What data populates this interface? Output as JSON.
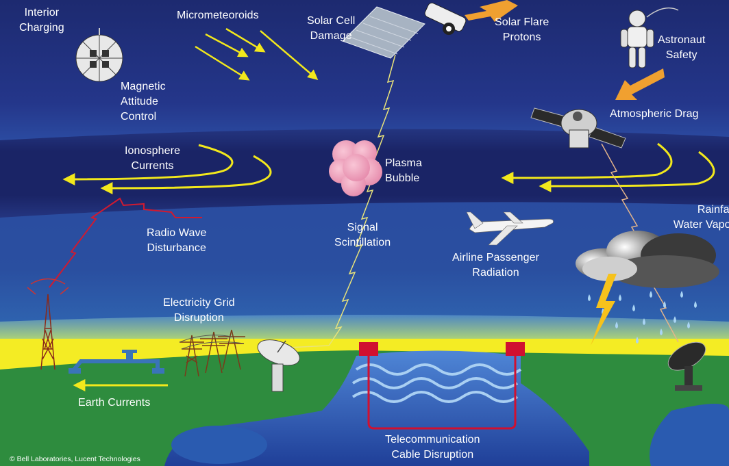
{
  "labels": {
    "interior_charging": "Interior\nCharging",
    "micrometeoroids": "Micrometeoroids",
    "solar_cell_damage": "Solar Cell\nDamage",
    "solar_flare_protons": "Solar Flare\nProtons",
    "astronaut_safety": "Astronaut\nSafety",
    "magnetic_attitude_control": "Magnetic\nAttitude\nControl",
    "atmospheric_drag": "Atmospheric Drag",
    "ionosphere_currents": "Ionosphere\nCurrents",
    "plasma_bubble": "Plasma\nBubble",
    "rainfall_water_vapor": "Rainfall\nWater Vapor",
    "radio_wave_disturbance": "Radio Wave\nDisturbance",
    "signal_scintillation": "Signal\nScintillation",
    "airline_passenger_radiation": "Airline Passenger\nRadiation",
    "electricity_grid_disruption": "Electricity Grid\nDisruption",
    "earth_currents": "Earth Currents",
    "telecommunication_cable_disruption": "Telecommunication\nCable Disruption"
  },
  "credit": "© Bell Laboratories, Lucent Technologies",
  "colors": {
    "space": "#1f2f78",
    "ionosphere_band": "#1a2360",
    "lower_sky": "#2a59a8",
    "horizon_yellow": "#f4ec2a",
    "ground": "#2d8a3e",
    "water": "#2a5bb0",
    "arrow_yellow": "#f2e81c",
    "arrow_orange": "#f0a030",
    "cable_red": "#d01030",
    "radio_red": "#d01a30"
  },
  "icons": [
    "satellite-sphere-icon",
    "space-station-icon",
    "astronaut-icon",
    "satellite-icon",
    "plasma-cloud-icon",
    "airplane-icon",
    "storm-cloud-icon",
    "lightning-icon",
    "radio-tower-icon",
    "power-pylon-icon",
    "pipeline-icon",
    "satellite-dish-icon",
    "cable-station-icon"
  ]
}
